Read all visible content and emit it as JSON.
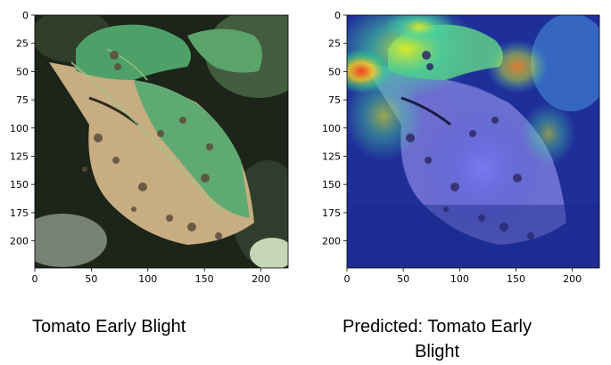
{
  "panels": [
    {
      "id": "original",
      "xticks": [
        "0",
        "50",
        "100",
        "150",
        "200"
      ],
      "yticks": [
        "0",
        "25",
        "50",
        "75",
        "100",
        "125",
        "150",
        "175",
        "200"
      ],
      "caption": "Tomato Early Blight"
    },
    {
      "id": "heatmap",
      "xticks": [
        "0",
        "50",
        "100",
        "150",
        "200"
      ],
      "yticks": [
        "0",
        "25",
        "50",
        "75",
        "100",
        "125",
        "150",
        "175",
        "200"
      ],
      "caption_line1": "Predicted: Tomato Early",
      "caption_line2": "Blight"
    }
  ],
  "image_extent": [
    0,
    224
  ],
  "colors": {
    "leaf_green": "#5aa36a",
    "leaf_brown": "#cdb48c",
    "background_dark": "#1b2418",
    "heat_blue": "#1f2f9a",
    "heat_red": "#e03a22"
  }
}
